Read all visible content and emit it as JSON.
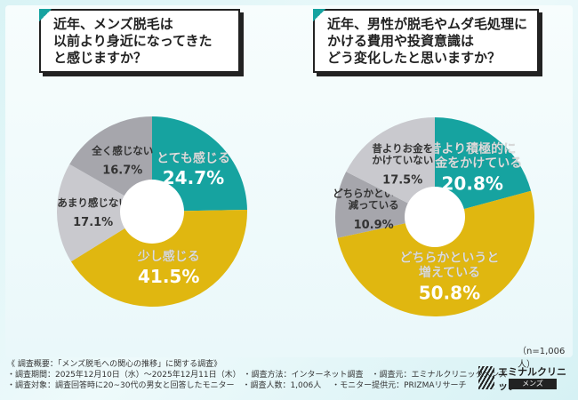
{
  "chart_data": [
    {
      "type": "pie",
      "title": "近年、メンズ脱毛は\n以前より身近になってきた\nと感じますか？",
      "categories": [
        "とても感じる",
        "少し感じる",
        "あまり感じない",
        "全く感じない"
      ],
      "values": [
        24.7,
        41.5,
        17.1,
        16.7
      ],
      "labels": [
        "24.7%",
        "41.5%",
        "17.1%",
        "16.7%"
      ],
      "colors": [
        "#16a3a0",
        "#e0b710",
        "#c9c9ce",
        "#a6a6ac"
      ]
    },
    {
      "type": "pie",
      "title": "近年、男性が脱毛やムダ毛処理に\nかける費用や投資意識は\nどう変化したと思いますか？",
      "categories": [
        "昔より積極的に\nお金をかけている",
        "どちらかというと\n増えている",
        "どちらかというと\n減っている",
        "昔よりお金を\nかけていない"
      ],
      "values": [
        20.8,
        50.8,
        10.9,
        17.5
      ],
      "labels": [
        "20.8%",
        "50.8%",
        "10.9%",
        "17.5%"
      ],
      "colors": [
        "#16a3a0",
        "#e0b710",
        "#a6a6ac",
        "#c9c9ce"
      ]
    }
  ],
  "sample_note": "（n=1,006人）",
  "footer": "《 調査概要：「メンズ脱毛への関心の推移」に関する調査》\n・調査期間：2025年12月10日（水）～2025年12月11日（木） ・調査方法：インターネット調査　・調査元：エミナルクリニックメンズ\n・調査対象：調査回答時に20~30代の男女と回答したモニター　・調査人数：1,006人　 ・モニター提供元：PRIZMAリサーチ",
  "logo": {
    "name": "エミナルクリニック",
    "sub": "メンズ"
  }
}
